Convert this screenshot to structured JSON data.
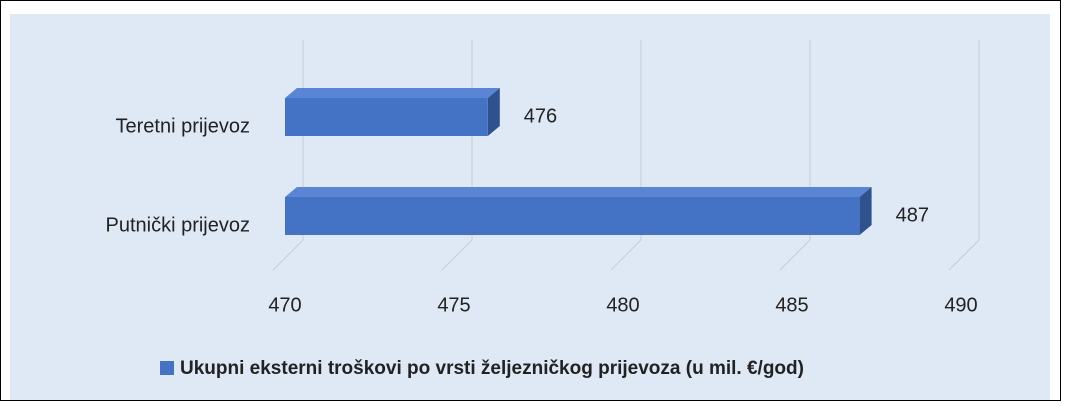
{
  "chart_data": {
    "type": "bar3d_horizontal",
    "categories": [
      "Teretni prijevoz",
      "Putnički prijevoz"
    ],
    "series": [
      {
        "name": "Ukupni eksterni troškovi po vrsti željezničkog prijevoza (u mil. €/god)",
        "color": "#4472c4",
        "values": [
          476,
          487
        ]
      }
    ],
    "xlim": [
      470,
      490
    ],
    "xticks": [
      470,
      475,
      480,
      485,
      490
    ],
    "grid": true,
    "legend": "bottom"
  }
}
